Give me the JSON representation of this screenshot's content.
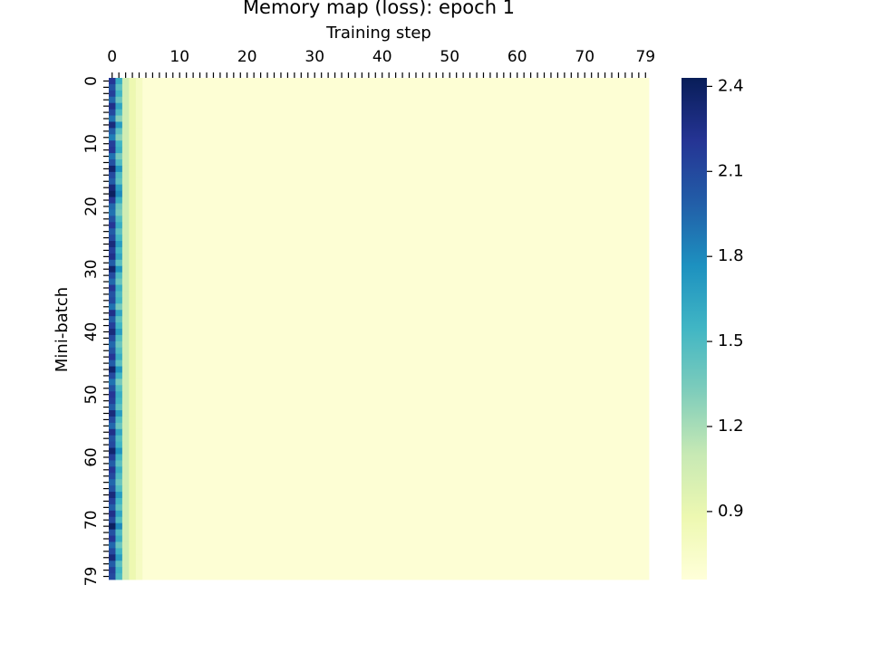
{
  "chart_data": {
    "type": "heatmap",
    "title": "Memory map (loss): epoch 1",
    "xlabel": "Training step",
    "ylabel": "Mini-batch",
    "x_axis_position": "top",
    "x_tick_labels": [
      "0",
      "10",
      "20",
      "30",
      "40",
      "50",
      "60",
      "70",
      "79"
    ],
    "x_tick_values": [
      0,
      10,
      20,
      30,
      40,
      50,
      60,
      70,
      79
    ],
    "y_tick_labels": [
      "0",
      "10",
      "20",
      "30",
      "40",
      "50",
      "60",
      "70",
      "79"
    ],
    "y_tick_values": [
      0,
      10,
      20,
      30,
      40,
      50,
      60,
      70,
      79
    ],
    "rows": 80,
    "cols": 80,
    "colormap": "YlGnBu",
    "colormap_stops": [
      "#ffffd9",
      "#edf8b1",
      "#c7e9b4",
      "#7fcdbb",
      "#41b6c4",
      "#1d91c0",
      "#225ea8",
      "#253494",
      "#081d58"
    ],
    "vmin": 0.66,
    "vmax": 2.43,
    "colorbar_ticks": [
      0.9,
      1.2,
      1.5,
      1.8,
      2.1,
      2.4
    ],
    "colorbar_tick_labels": [
      "0.9",
      "1.2",
      "1.5",
      "1.8",
      "2.1",
      "2.4"
    ],
    "pattern": {
      "col0_loss_by_row": [
        2.2,
        2.05,
        2.15,
        1.95,
        2.25,
        2.1,
        1.9,
        2.3,
        2.0,
        1.85,
        2.15,
        2.2,
        1.9,
        2.05,
        2.35,
        2.1,
        2.0,
        2.3,
        2.4,
        2.2,
        1.95,
        1.9,
        2.05,
        2.2,
        2.0,
        2.1,
        2.3,
        2.15,
        2.25,
        2.0,
        2.35,
        2.1,
        1.95,
        2.2,
        2.05,
        2.1,
        1.9,
        2.25,
        2.0,
        2.15,
        2.3,
        2.1,
        1.95,
        2.05,
        2.2,
        2.0,
        2.35,
        2.1,
        1.9,
        2.05,
        2.2,
        2.15,
        2.0,
        2.3,
        2.1,
        1.95,
        2.25,
        2.05,
        2.1,
        2.35,
        2.15,
        2.0,
        2.2,
        2.1,
        1.95,
        2.05,
        2.3,
        2.15,
        2.0,
        2.25,
        2.1,
        2.4,
        2.05,
        2.2,
        1.95,
        2.1,
        2.3,
        2.0,
        2.15,
        2.1
      ],
      "col1_loss_by_row": [
        1.6,
        1.45,
        1.55,
        1.4,
        1.65,
        1.5,
        1.3,
        1.7,
        1.45,
        1.3,
        1.55,
        1.6,
        1.35,
        1.5,
        1.75,
        1.5,
        1.45,
        1.7,
        1.8,
        1.6,
        1.4,
        1.35,
        1.5,
        1.6,
        1.45,
        1.55,
        1.7,
        1.55,
        1.65,
        1.45,
        1.75,
        1.5,
        1.4,
        1.6,
        1.5,
        1.55,
        1.35,
        1.65,
        1.45,
        1.55,
        1.7,
        1.5,
        1.4,
        1.5,
        1.6,
        1.45,
        1.75,
        1.55,
        1.35,
        1.5,
        1.6,
        1.55,
        1.45,
        1.7,
        1.5,
        1.4,
        1.65,
        1.5,
        1.55,
        1.75,
        1.55,
        1.45,
        1.6,
        1.5,
        1.4,
        1.5,
        1.7,
        1.55,
        1.45,
        1.65,
        1.5,
        1.8,
        1.5,
        1.6,
        1.4,
        1.55,
        1.7,
        1.45,
        1.55,
        1.5
      ],
      "col2_loss": 1.05,
      "col3_loss": 0.88,
      "col4_loss": 0.78,
      "tail_loss": 0.69
    }
  }
}
